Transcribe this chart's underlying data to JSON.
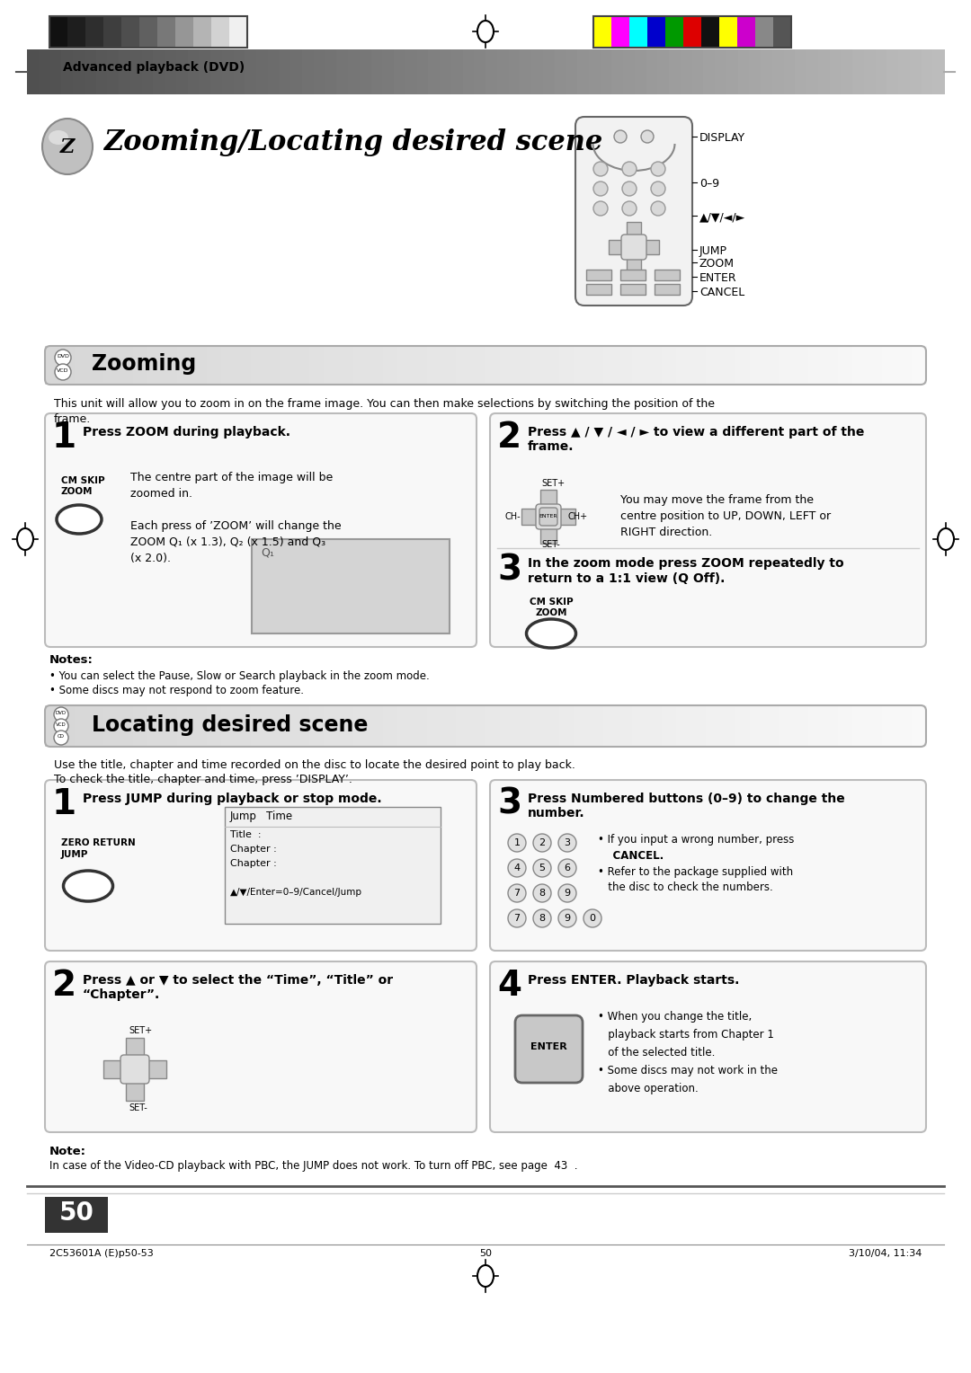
{
  "page_bg": "#ffffff",
  "header_text": "Advanced playback (DVD)",
  "title": "Zooming/Locating desired scene",
  "remote_labels": [
    "DISPLAY",
    "0–9",
    "▲/▼/◄/►",
    "JUMP",
    "ZOOM",
    "ENTER",
    "CANCEL"
  ],
  "zooming_title": "Zooming",
  "zooming_intro1": "This unit will allow you to zoom in on the frame image. You can then make selections by switching the position of the",
  "zooming_intro2": "frame.",
  "step1_title": "Press ZOOM during playback.",
  "step1_label1": "CM SKIP",
  "step1_label2": "ZOOM",
  "step1_line1": "The centre part of the image will be",
  "step1_line2": "zoomed in.",
  "step1_line3": "Each press of ’ZOOM’ will change the",
  "step1_line4": "ZOOM Q₁ (x 1.3), Q₂ (x 1.5) and Q₃",
  "step1_line5": "(x 2.0).",
  "step2_title1": "Press ▲ / ▼ / ◄ / ► to view a different part of the",
  "step2_title2": "frame.",
  "step2_line1": "You may move the frame from the",
  "step2_line2": "centre position to UP, DOWN, LEFT or",
  "step2_line3": "RIGHT direction.",
  "step3_title1": "In the zoom mode press ZOOM repeatedly to",
  "step3_title2": "return to a 1:1 view (Q Off).",
  "step3_label1": "CM SKIP",
  "step3_label2": "ZOOM",
  "notes_title": "Notes:",
  "note1": "• You can select the Pause, Slow or Search playback in the zoom mode.",
  "note2": "• Some discs may not respond to zoom feature.",
  "locating_title": "Locating desired scene",
  "locating_intro1": "Use the title, chapter and time recorded on the disc to locate the desired point to play back.",
  "locating_intro2": "To check the title, chapter and time, press ’DISPLAY’.",
  "lstep1_title": "Press JUMP during playback or stop mode.",
  "lstep1_label1": "ZERO RETURN",
  "lstep1_label2": "JUMP",
  "lstep2_title1": "Press ▲ or ▼ to select the “Time”, “Title” or",
  "lstep2_title2": "“Chapter”.",
  "lstep3_title1": "Press Numbered buttons (0–9) to change the",
  "lstep3_title2": "number.",
  "lstep3_line1": "• If you input a wrong number, press",
  "lstep3_cancel": "    CANCEL.",
  "lstep3_line2": "• Refer to the package supplied with",
  "lstep3_line3": "   the disc to check the numbers.",
  "lstep4_title": "Press ENTER. Playback starts.",
  "lstep4_line1": "• When you change the title,",
  "lstep4_line2": "   playback starts from Chapter 1",
  "lstep4_line3": "   of the selected title.",
  "lstep4_line4": "• Some discs may not work in the",
  "lstep4_line5": "   above operation.",
  "note_label": "Note:",
  "note_bottom": "In case of the Video-CD playback with PBC, the JUMP does not work. To turn off PBC, see page  43  .",
  "page_number": "50",
  "footer_left": "2C53601A (E)p50-53",
  "footer_center": "50",
  "footer_right": "3/10/04, 11:34",
  "gray_bars": [
    "#111111",
    "#1e1e1e",
    "#2e2e2e",
    "#3e3e3e",
    "#4e4e4e",
    "#606060",
    "#787878",
    "#969696",
    "#b4b4b4",
    "#d2d2d2",
    "#f0f0f0"
  ],
  "color_bars": [
    "#ffff00",
    "#ff00ff",
    "#00ffff",
    "#0000cc",
    "#009900",
    "#dd0000",
    "#111111",
    "#ffff00",
    "#cc00cc",
    "#888888",
    "#555555"
  ]
}
